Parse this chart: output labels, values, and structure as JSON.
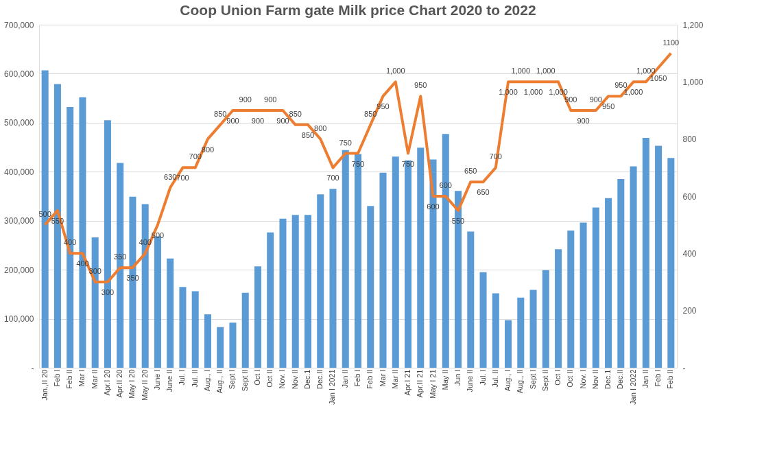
{
  "chart_data": {
    "type": "bar",
    "title": "Coop Union Farm gate Milk price Chart 2020 to 2022",
    "categories": [
      "Jan.,II 20",
      "Feb I",
      "Feb II",
      "Mar I",
      "Mar II",
      "Apr.I 20",
      "Apr.II 20",
      "May I 20",
      "May II 20",
      "June I",
      "June II",
      "Jul. I",
      "Jul. II",
      "Aug., I",
      "Aug., II",
      "Sept I",
      "Sept II",
      "Oct I",
      "Oct II",
      "Nov. I",
      "Nov II",
      "Dec.1",
      "Dec.II",
      "Jan I 2021",
      "Jan II",
      "Feb I",
      "Feb II",
      "Mar I",
      "Mar II",
      "Apr.I 21",
      "Apr.II 21",
      "May I 21",
      "May II",
      "Jun I",
      "June II",
      "Jul. I",
      "Jul. II",
      "Aug., I",
      "Aug., II",
      "Sept I",
      "Sept II",
      "Oct I",
      "Oct II",
      "Nov. I",
      "Nov II",
      "Dec.1",
      "Dec.II",
      "Jan I 2022",
      "Jan II",
      "Feb I",
      "Feb II"
    ],
    "series": [
      {
        "color": "#5b9bd5",
        "values": [
          607000,
          579000,
          532000,
          552000,
          266000,
          505000,
          418000,
          349000,
          334000,
          268000,
          223000,
          165000,
          156000,
          109000,
          83000,
          92000,
          153000,
          207000,
          276000,
          304000,
          312000,
          312000,
          354000,
          365000,
          444000,
          436000,
          330000,
          398000,
          431000,
          423000,
          449000,
          425000,
          477000,
          361000,
          278000,
          195000,
          152000,
          97000,
          143000,
          159000,
          199000,
          242000,
          280000,
          296000,
          327000,
          346000,
          385000,
          411000,
          469000,
          453000,
          428000
        ]
      },
      {
        "type": "line",
        "axis": "y2",
        "color": "#ed7d31",
        "values": [
          500,
          550,
          400,
          400,
          300,
          300,
          350,
          350,
          400,
          500,
          630,
          700,
          700,
          800,
          850,
          900,
          900,
          900,
          900,
          900,
          850,
          850,
          800,
          700,
          750,
          750,
          850,
          950,
          1000,
          750,
          950,
          600,
          600,
          550,
          650,
          650,
          700,
          1000,
          1000,
          1000,
          1000,
          1000,
          900,
          900,
          900,
          950,
          950,
          1000,
          1000,
          1050,
          1100
        ],
        "value_labels": [
          "500",
          "550",
          "400",
          "400",
          "300",
          "300",
          "350",
          "350",
          "400",
          "500",
          "630",
          "700",
          "700",
          "800",
          "850",
          "900",
          "900",
          "900",
          "900",
          "900",
          "850",
          "850",
          "800",
          "700",
          "750",
          "750",
          "850",
          "950",
          "1,000",
          "750",
          "950",
          "600",
          "600",
          "550",
          "650",
          "650",
          "700",
          "1,000",
          "1,000",
          "1,000",
          "1,000",
          "1,000",
          "900",
          "900",
          "900",
          "950",
          "950",
          "1,000",
          "1,000",
          "1050",
          "1100"
        ]
      }
    ],
    "ylim": [
      0,
      700000
    ],
    "yticks": [
      {
        "value": 0,
        "label": "-"
      },
      {
        "value": 100000,
        "label": "100,000"
      },
      {
        "value": 200000,
        "label": "200,000"
      },
      {
        "value": 300000,
        "label": "300,000"
      },
      {
        "value": 400000,
        "label": "400,000"
      },
      {
        "value": 500000,
        "label": "500,000"
      },
      {
        "value": 600000,
        "label": "600,000"
      },
      {
        "value": 700000,
        "label": "700,000"
      }
    ],
    "y2lim": [
      0,
      1200
    ],
    "y2ticks": [
      {
        "value": 0,
        "label": "-"
      },
      200,
      400,
      600,
      800,
      {
        "value": 1000,
        "label": "1,000"
      },
      {
        "value": 1200,
        "label": "1,200"
      }
    ],
    "grid": "y",
    "marker": "none",
    "line_style": "solid"
  }
}
